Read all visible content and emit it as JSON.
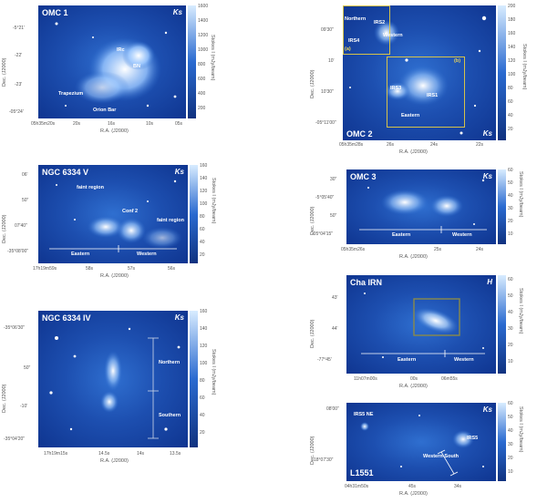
{
  "unit_label": "Stokes I (mJy/beam)",
  "xaxis_label": "R.A. (J2000)",
  "yaxis_label": "Dec. (J2000)",
  "panels": {
    "omc1": {
      "title": "OMC 1",
      "band": "Ks",
      "labels": [
        "IRc",
        "BN",
        "Trapezium",
        "Orion Bar"
      ],
      "cbar_ticks": [
        "1600",
        "1400",
        "1200",
        "1000",
        "800",
        "600",
        "400",
        "200"
      ],
      "yticks": [
        "-5°21'",
        "-22'",
        "-23'",
        "-05°24'"
      ],
      "xticks": [
        "05h35m20s",
        "20s",
        "16s",
        "10s",
        "05s"
      ]
    },
    "omc2": {
      "title": "OMC 2",
      "band": "Ks",
      "labels": [
        "Northern",
        "IRS2",
        "Western",
        "IRS4",
        "(a)",
        "(b)",
        "IRS3",
        "IRS1",
        "Eastern"
      ],
      "cbar_ticks": [
        "200",
        "180",
        "160",
        "140",
        "120",
        "100",
        "80",
        "60",
        "40",
        "20"
      ],
      "yticks": [
        "09'30\"",
        "10'",
        "10'30\"",
        "-05°11'00\""
      ],
      "xticks": [
        "05h35m28s",
        "26s",
        "24s",
        "22s"
      ]
    },
    "ngc6334v": {
      "title": "NGC 6334 V",
      "band": "Ks",
      "labels": [
        "faint region",
        "Conf 2",
        "faint region",
        "Eastern",
        "Western"
      ],
      "cbar_ticks": [
        "160",
        "140",
        "120",
        "100",
        "80",
        "60",
        "40",
        "20"
      ],
      "yticks": [
        "06'",
        "50\"",
        "07'40\"",
        "-35°08'00\""
      ],
      "xticks": [
        "17h19m59s",
        "58s",
        "57s",
        "56s"
      ]
    },
    "omc3": {
      "title": "OMC 3",
      "band": "Ks",
      "labels": [
        "Eastern",
        "Western"
      ],
      "cbar_ticks": [
        "60",
        "50",
        "40",
        "30",
        "20",
        "10"
      ],
      "yticks": [
        "30\"",
        "-5°05'40\"",
        "50\"",
        "-05°04'15\""
      ],
      "xticks": [
        "05h35m26s",
        "25s",
        "24s"
      ]
    },
    "ngc6334iv": {
      "title": "NGC 6334 IV",
      "band": "Ks",
      "labels": [
        "Northern",
        "Southern"
      ],
      "cbar_ticks": [
        "160",
        "140",
        "120",
        "100",
        "80",
        "60",
        "40",
        "20"
      ],
      "yticks": [
        "-35°06'30\"",
        "50\"",
        "-10'",
        "-35°04'20\""
      ],
      "xticks": [
        "17h19m15s",
        "14.5s",
        "14s",
        "13.5s"
      ]
    },
    "chaibn": {
      "title": "Cha IRN",
      "band": "H",
      "labels": [
        "Eastern",
        "Western"
      ],
      "cbar_ticks": [
        "60",
        "50",
        "40",
        "30",
        "20",
        "10"
      ],
      "yticks": [
        "43'",
        "44'",
        "-77°45'"
      ],
      "xticks": [
        "11h07m00s",
        "00s",
        "06m55s"
      ]
    },
    "l1551": {
      "title": "L1551",
      "band": "Ks",
      "labels": [
        "IRS5 NE",
        "IRS5",
        "Western-South"
      ],
      "cbar_ticks": [
        "60",
        "50",
        "40",
        "30",
        "20",
        "10"
      ],
      "yticks": [
        "08'00\"",
        "18°07'30\""
      ],
      "xticks": [
        "04h31m50s",
        "45s",
        "34s"
      ]
    }
  }
}
